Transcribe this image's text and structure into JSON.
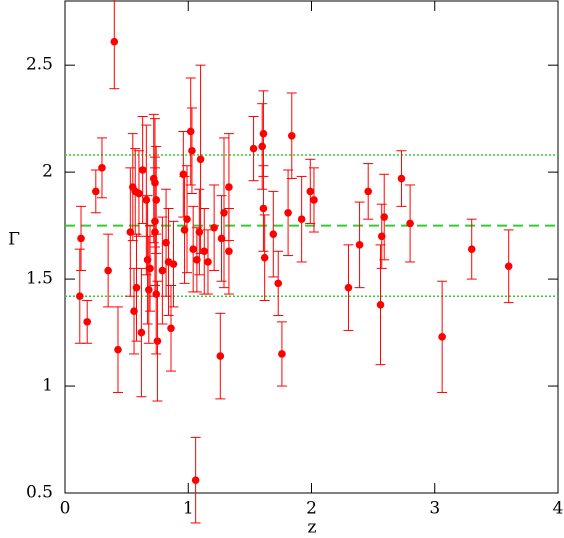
{
  "chart_data": {
    "type": "scatter",
    "x_label": "z",
    "y_label": "Γ",
    "xlim": [
      0,
      4
    ],
    "ylim": [
      0.5,
      2.8
    ],
    "xticks": [
      0,
      1,
      2,
      3,
      4
    ],
    "yticks": [
      0.5,
      1,
      1.5,
      2,
      2.5
    ],
    "series": [
      {
        "color": "#ff0000",
        "x": [
          0.13,
          0.12,
          0.18,
          0.25,
          0.3,
          0.35,
          0.4,
          0.43,
          0.53,
          0.55,
          0.56,
          0.57,
          0.58,
          0.6,
          0.62,
          0.63,
          0.66,
          0.67,
          0.68,
          0.69,
          0.72,
          0.73,
          0.73,
          0.73,
          0.74,
          0.75,
          0.74,
          0.79,
          0.82,
          0.84,
          0.86,
          0.88,
          0.96,
          0.97,
          0.99,
          1.02,
          1.03,
          1.04,
          1.06,
          1.07,
          1.09,
          1.1,
          1.13,
          1.16,
          1.21,
          1.26,
          1.27,
          1.29,
          1.33,
          1.33,
          1.53,
          1.6,
          1.61,
          1.61,
          1.62,
          1.69,
          1.73,
          1.76,
          1.81,
          1.84,
          1.92,
          1.99,
          2.02,
          2.3,
          2.39,
          2.46,
          2.56,
          2.57,
          2.59,
          2.73,
          2.8,
          3.06,
          3.3,
          3.6
        ],
        "values": [
          1.69,
          1.42,
          1.3,
          1.91,
          2.02,
          1.54,
          2.61,
          1.17,
          1.72,
          1.93,
          1.35,
          1.91,
          1.46,
          1.9,
          1.25,
          2.01,
          1.87,
          1.59,
          1.45,
          1.55,
          1.97,
          1.95,
          1.77,
          1.72,
          1.43,
          1.21,
          1.87,
          1.54,
          1.67,
          1.58,
          1.27,
          1.57,
          1.99,
          1.73,
          1.78,
          2.19,
          2.1,
          1.64,
          0.56,
          1.59,
          1.72,
          2.06,
          1.63,
          1.58,
          1.74,
          1.14,
          1.69,
          1.81,
          1.93,
          1.63,
          2.11,
          2.12,
          2.18,
          1.83,
          1.6,
          1.71,
          1.48,
          1.15,
          1.81,
          2.17,
          1.78,
          1.91,
          1.87,
          1.46,
          1.66,
          1.91,
          1.38,
          1.7,
          1.79,
          1.97,
          1.76,
          1.23,
          1.64,
          1.56
        ],
        "errors": [
          0.15,
          0.22,
          0.1,
          0.1,
          0.14,
          0.17,
          0.22,
          0.2,
          0.3,
          0.25,
          0.2,
          0.2,
          0.25,
          0.2,
          0.3,
          0.25,
          0.35,
          0.3,
          0.25,
          0.2,
          0.3,
          0.3,
          0.3,
          0.3,
          0.28,
          0.28,
          0.25,
          0.25,
          0.25,
          0.25,
          0.2,
          0.2,
          0.2,
          0.25,
          0.25,
          0.25,
          0.2,
          0.2,
          0.2,
          0.15,
          0.2,
          0.44,
          0.2,
          0.15,
          0.2,
          0.2,
          0.2,
          0.35,
          0.25,
          0.2,
          0.15,
          0.2,
          0.2,
          0.2,
          0.2,
          0.2,
          0.15,
          0.15,
          0.2,
          0.2,
          0.2,
          0.15,
          0.15,
          0.2,
          0.2,
          0.13,
          0.28,
          0.15,
          0.2,
          0.13,
          0.18,
          0.26,
          0.14,
          0.17
        ]
      }
    ],
    "hlines": [
      {
        "value": 1.75,
        "style": "dashed",
        "color": "#33cc33"
      },
      {
        "value": 2.08,
        "style": "dotted",
        "color": "#33cc33"
      },
      {
        "value": 1.42,
        "style": "dotted",
        "color": "#33cc33"
      }
    ]
  }
}
